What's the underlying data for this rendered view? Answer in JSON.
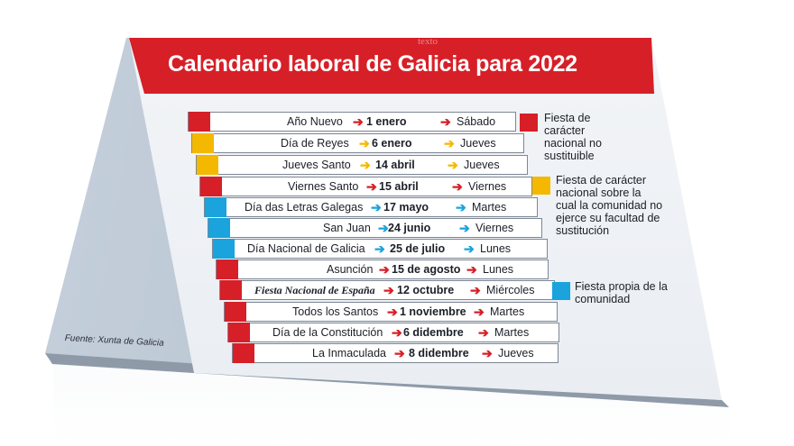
{
  "header": {
    "title": "Calendario laboral de Galicia para 2022",
    "watermark": "texto"
  },
  "source": "Fuente: Xunta de Galicia",
  "colors": {
    "red": "#d71f27",
    "yellow": "#f5b800",
    "blue": "#1aa3dc"
  },
  "holidays": [
    {
      "name": "Año Nuevo",
      "date": "1 enero",
      "weekday": "Sábado",
      "color": "#d71f27"
    },
    {
      "name": "Día de Reyes",
      "date": "6 enero",
      "weekday": "Jueves",
      "color": "#f5b800"
    },
    {
      "name": "Jueves Santo",
      "date": "14 abril",
      "weekday": "Jueves",
      "color": "#f5b800"
    },
    {
      "name": "Viernes Santo",
      "date": "15 abril",
      "weekday": "Viernes",
      "color": "#d71f27"
    },
    {
      "name": "Día das Letras Galegas",
      "date": "17 mayo",
      "weekday": "Martes",
      "color": "#1aa3dc"
    },
    {
      "name": "San Juan",
      "date": "24 junio",
      "weekday": "Viernes",
      "color": "#1aa3dc"
    },
    {
      "name": "Día Nacional de Galicia",
      "date": "25 de julio",
      "weekday": "Lunes",
      "color": "#1aa3dc"
    },
    {
      "name": "Asunción",
      "date": "15 de agosto",
      "weekday": "Lunes",
      "color": "#d71f27"
    },
    {
      "name": "Fiesta Nacional de España",
      "date": "12 octubre",
      "weekday": "Miércoles",
      "color": "#d71f27"
    },
    {
      "name": "Todos los Santos",
      "date": "1 noviembre",
      "weekday": "Martes",
      "color": "#d71f27"
    },
    {
      "name": "Día de la Constitución",
      "date": "6 didembre",
      "weekday": "Martes",
      "color": "#d71f27"
    },
    {
      "name": "La Inmaculada",
      "date": "8 didembre",
      "weekday": "Jueves",
      "color": "#d71f27"
    }
  ],
  "legend": [
    {
      "color": "#d71f27",
      "text": "Fiesta de carácter nacional no sustituible"
    },
    {
      "color": "#f5b800",
      "text": "Fiesta de carácter nacional sobre la cual la comunidad no ejerce su facultad de sustitución"
    },
    {
      "color": "#1aa3dc",
      "text": "Fiesta propia de la comunidad"
    }
  ]
}
